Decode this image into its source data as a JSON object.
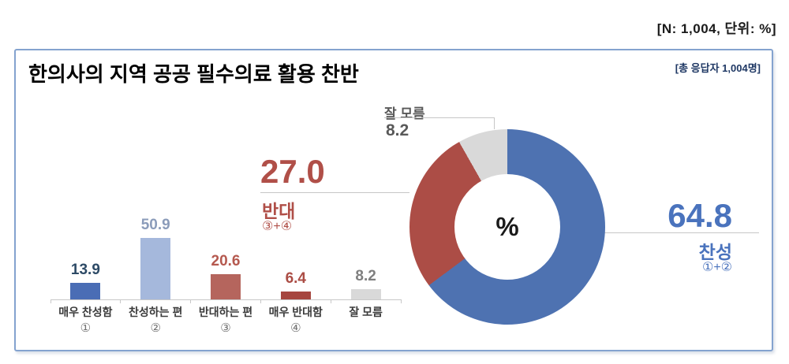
{
  "header": {
    "note": "[N: 1,004, 단위: %]"
  },
  "panel": {
    "title": "한의사의 지역 공공 필수의료 활용 찬반",
    "respondents_note": "[총 응답자 1,004명]"
  },
  "colors": {
    "favor": "#4a73bd",
    "oppose": "#b04f48",
    "neutral": "#595959",
    "leader_line": "#c6c6c6",
    "axis": "#c8c8c8",
    "panel_border": "#84a3cf",
    "title": "#000000",
    "respondents_note": "#1f3864",
    "survey_note": "#1a1a1a",
    "category_label": "#3b3b3b",
    "category_mark": "#6f6f6f"
  },
  "chart_data": [
    {
      "type": "bar",
      "categories": [
        {
          "label": "매우 찬성함",
          "mark": "①"
        },
        {
          "label": "찬성하는 편",
          "mark": "②"
        },
        {
          "label": "반대하는 편",
          "mark": "③"
        },
        {
          "label": "매우 반대함",
          "mark": "④"
        },
        {
          "label": "잘 모름",
          "mark": ""
        }
      ],
      "values": [
        13.9,
        50.9,
        20.6,
        6.4,
        8.2
      ],
      "bar_colors": [
        "#4a6db5",
        "#a5b8dc",
        "#b5655d",
        "#a6463f",
        "#d9d9d9"
      ],
      "value_label_colors": [
        "#2d4a66",
        "#8b9cba",
        "#b5594f",
        "#ab4d45",
        "#7f7f7f"
      ],
      "ylim": [
        0,
        55
      ],
      "grid": false
    },
    {
      "type": "donut",
      "center_label": "%",
      "start_angle_deg": 0,
      "direction": "clockwise",
      "slices": [
        {
          "label": "찬성",
          "formula": "①+②",
          "value": 64.8,
          "display": "64.8",
          "color": "#4e72b1"
        },
        {
          "label": "반대",
          "formula": "③+④",
          "value": 27.0,
          "display": "27.0",
          "color": "#ac4d46"
        },
        {
          "label": "잘 모름",
          "formula": "",
          "value": 8.2,
          "display": "8.2",
          "color": "#d9d9d9"
        }
      ]
    }
  ]
}
